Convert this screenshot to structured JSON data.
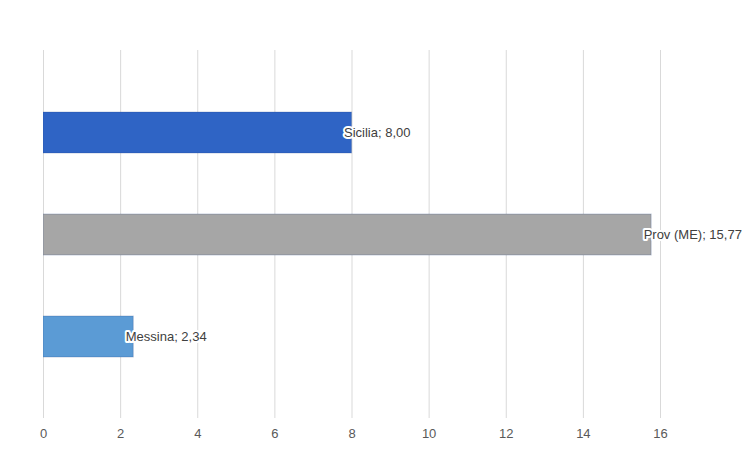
{
  "chart_data": {
    "type": "bar",
    "orientation": "horizontal",
    "categories": [
      "Sicilia",
      "Prov (ME)",
      "Messina"
    ],
    "values": [
      8.0,
      15.77,
      2.34
    ],
    "value_labels": [
      "Sicilia; 8,00",
      "Prov (ME); 15,77",
      "Messina; 2,34"
    ],
    "colors": [
      "#2f64c5",
      "#a6a6a6",
      "#5b9bd5"
    ],
    "xlim": [
      0,
      16
    ],
    "xticks": [
      0,
      2,
      4,
      6,
      8,
      10,
      12,
      14,
      16
    ],
    "grid": true,
    "data_labels": true,
    "tick_labels": "x"
  }
}
